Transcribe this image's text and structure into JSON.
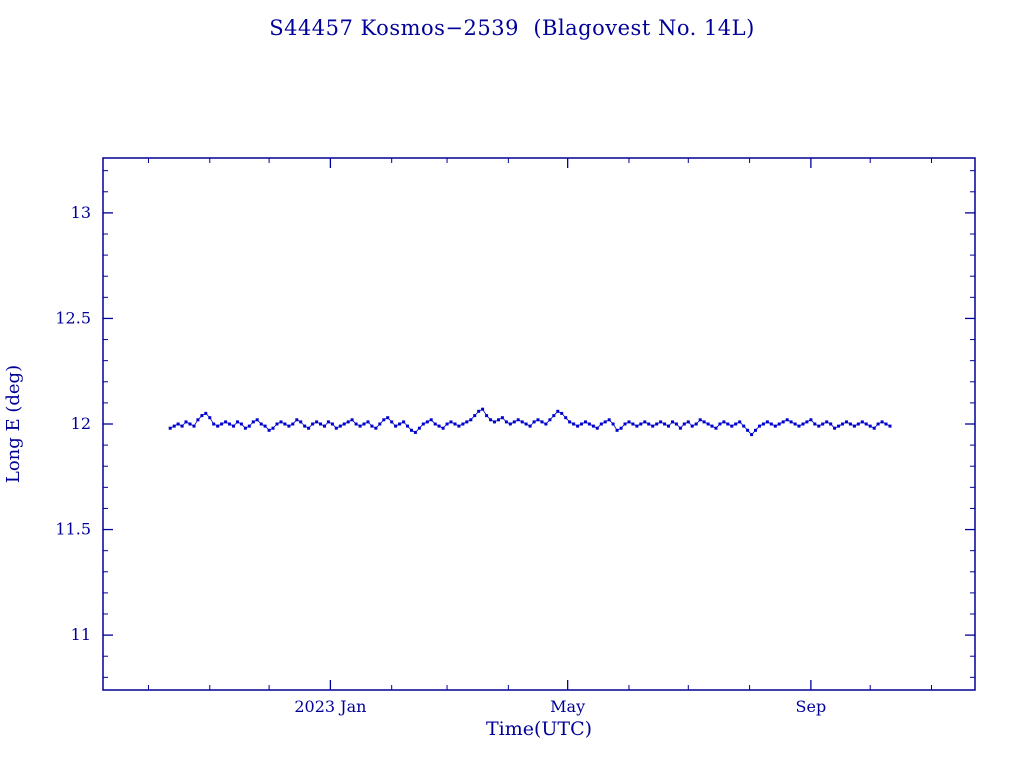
{
  "page": {
    "background": "#ffffff"
  },
  "colors": {
    "axis": "#000099",
    "text": "#000099",
    "data": "#0000CC"
  },
  "chart_data": {
    "type": "scatter",
    "title": "S44457 Kosmos−2539  (Blagovest No. 14L)",
    "xlabel": "Time(UTC)",
    "ylabel": "Long E (deg)",
    "x_unit": "days since 2022-10-12",
    "xlim": [
      -34,
      407
    ],
    "ylim": [
      10.74,
      13.26
    ],
    "x_ticks": [
      {
        "pos": 81,
        "label": "2023 Jan"
      },
      {
        "pos": 201,
        "label": "May"
      },
      {
        "pos": 324,
        "label": "Sep"
      }
    ],
    "x_minor_ticks": [
      -11,
      20,
      50,
      112,
      140,
      171,
      232,
      262,
      293,
      354,
      385
    ],
    "y_ticks": [
      {
        "value": 11,
        "label": "11"
      },
      {
        "value": 11.5,
        "label": "11.5"
      },
      {
        "value": 12,
        "label": "12"
      },
      {
        "value": 12.5,
        "label": "12.5"
      },
      {
        "value": 13,
        "label": "13"
      }
    ],
    "y_minor_step": 0.1,
    "grid": false,
    "legend": false,
    "series": {
      "name": "longitude-east-deg",
      "marker": "square",
      "x_start": 0,
      "x_step": 2,
      "values": [
        11.98,
        11.99,
        12.0,
        11.99,
        12.01,
        12.0,
        11.99,
        12.02,
        12.04,
        12.05,
        12.03,
        12.0,
        11.99,
        12.0,
        12.01,
        12.0,
        11.99,
        12.01,
        12.0,
        11.98,
        11.99,
        12.01,
        12.02,
        12.0,
        11.99,
        11.97,
        11.98,
        12.0,
        12.01,
        12.0,
        11.99,
        12.0,
        12.02,
        12.01,
        11.99,
        11.98,
        12.0,
        12.01,
        12.0,
        11.99,
        12.01,
        12.0,
        11.98,
        11.99,
        12.0,
        12.01,
        12.02,
        12.0,
        11.99,
        12.0,
        12.01,
        11.99,
        11.98,
        12.0,
        12.02,
        12.03,
        12.01,
        11.99,
        12.0,
        12.01,
        11.99,
        11.97,
        11.96,
        11.98,
        12.0,
        12.01,
        12.02,
        12.0,
        11.99,
        11.98,
        12.0,
        12.01,
        12.0,
        11.99,
        12.0,
        12.01,
        12.02,
        12.04,
        12.06,
        12.07,
        12.04,
        12.02,
        12.01,
        12.02,
        12.03,
        12.01,
        12.0,
        12.01,
        12.02,
        12.01,
        12.0,
        11.99,
        12.01,
        12.02,
        12.01,
        12.0,
        12.02,
        12.04,
        12.06,
        12.05,
        12.03,
        12.01,
        12.0,
        11.99,
        12.0,
        12.01,
        12.0,
        11.99,
        11.98,
        12.0,
        12.01,
        12.02,
        12.0,
        11.97,
        11.98,
        12.0,
        12.01,
        12.0,
        11.99,
        12.0,
        12.01,
        12.0,
        11.99,
        12.0,
        12.01,
        12.0,
        11.99,
        12.01,
        12.0,
        11.98,
        12.0,
        12.01,
        11.99,
        12.0,
        12.02,
        12.01,
        12.0,
        11.99,
        11.98,
        12.0,
        12.01,
        12.0,
        11.99,
        12.0,
        12.01,
        11.99,
        11.97,
        11.95,
        11.97,
        11.99,
        12.0,
        12.01,
        12.0,
        11.99,
        12.0,
        12.01,
        12.02,
        12.01,
        12.0,
        11.99,
        12.0,
        12.01,
        12.02,
        12.0,
        11.99,
        12.0,
        12.01,
        12.0,
        11.98,
        11.99,
        12.0,
        12.01,
        12.0,
        11.99,
        12.0,
        12.01,
        12.0,
        11.99,
        11.98,
        12.0,
        12.01,
        12.0,
        11.99
      ]
    }
  }
}
